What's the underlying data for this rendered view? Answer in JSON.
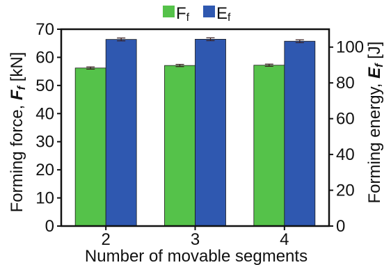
{
  "chart_data": {
    "type": "bar",
    "categories": [
      "2",
      "3",
      "4"
    ],
    "xlabel": "Number of movable segments",
    "ylabel_left": {
      "prefix": "Forming force, ",
      "symbol": "F",
      "sub": "f",
      "unit": " [kN]"
    },
    "ylabel_right": {
      "prefix": "Forming energy, ",
      "symbol": "E",
      "sub": "f",
      "unit": " [J]"
    },
    "ylim_left": [
      0,
      70
    ],
    "ylim_right": [
      0,
      110
    ],
    "yticks_left": [
      "0",
      "10",
      "20",
      "30",
      "40",
      "50",
      "60",
      "70"
    ],
    "yticks_right": [
      "0",
      "20",
      "40",
      "60",
      "80",
      "100"
    ],
    "series": [
      {
        "name": "F",
        "sub": "f",
        "axis": "left",
        "color": "#55c24a",
        "values": [
          56.2,
          57.1,
          57.2
        ],
        "errors": [
          0.4,
          0.4,
          0.4
        ]
      },
      {
        "name": "E",
        "sub": "f",
        "axis": "right",
        "color": "#2f58b0",
        "values": [
          104.3,
          104.4,
          103.3
        ],
        "errors": [
          0.8,
          0.8,
          0.8
        ]
      }
    ],
    "legend_position": "top"
  }
}
